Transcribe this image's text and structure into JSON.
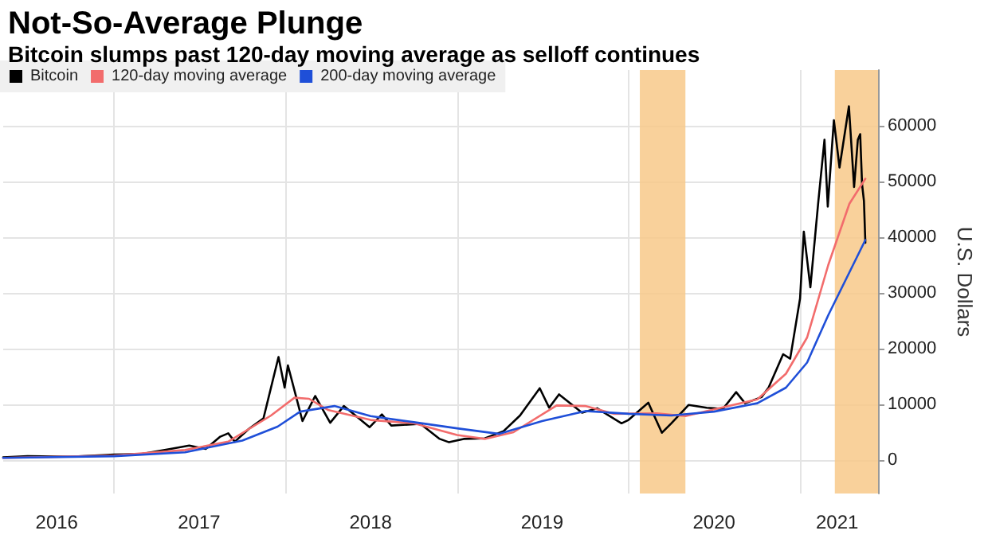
{
  "chart_data": {
    "type": "line",
    "title": "Not-So-Average Plunge",
    "subtitle": "Bitcoin slumps past 120-day moving average as selloff continues",
    "ylabel": "U.S. Dollars",
    "xlim": [
      "2016-05-10",
      "2021-06-15"
    ],
    "ylim": [
      -6000,
      70000
    ],
    "yticks": [
      0,
      10000,
      20000,
      30000,
      40000,
      50000,
      60000
    ],
    "xticks": [
      {
        "value": "2016-09-01",
        "label": "2016"
      },
      {
        "value": "2017-01-01",
        "label": null
      },
      {
        "value": "2017-07-01",
        "label": "2017"
      },
      {
        "value": "2018-01-01",
        "label": null
      },
      {
        "value": "2018-07-01",
        "label": "2018"
      },
      {
        "value": "2019-01-01",
        "label": null
      },
      {
        "value": "2019-07-01",
        "label": "2019"
      },
      {
        "value": "2020-01-01",
        "label": null
      },
      {
        "value": "2020-07-01",
        "label": "2020"
      },
      {
        "value": "2021-01-01",
        "label": null
      },
      {
        "value": "2021-03-20",
        "label": "2021"
      }
    ],
    "grid": true,
    "legend": "top left",
    "marker": "none",
    "line_style": "solid",
    "bands": [
      {
        "axis": "x",
        "from": "2020-01-25",
        "to": "2020-05-01",
        "color": "#f8c98a"
      },
      {
        "axis": "x",
        "from": "2021-03-15",
        "to": "2021-06-15",
        "color": "#f8c98a"
      }
    ],
    "series": [
      {
        "name": "Bitcoin",
        "color": "#000000",
        "x": [
          "2016-05-10",
          "2016-07-01",
          "2016-10-01",
          "2017-01-01",
          "2017-03-01",
          "2017-05-01",
          "2017-06-10",
          "2017-07-15",
          "2017-08-15",
          "2017-09-01",
          "2017-09-15",
          "2017-10-15",
          "2017-11-15",
          "2017-12-17",
          "2017-12-30",
          "2018-01-06",
          "2018-02-06",
          "2018-03-05",
          "2018-04-06",
          "2018-05-05",
          "2018-06-29",
          "2018-07-25",
          "2018-08-14",
          "2018-10-15",
          "2018-11-25",
          "2018-12-15",
          "2019-01-15",
          "2019-03-01",
          "2019-04-10",
          "2019-05-15",
          "2019-06-26",
          "2019-07-16",
          "2019-08-06",
          "2019-09-24",
          "2019-10-26",
          "2019-12-17",
          "2020-01-01",
          "2020-02-12",
          "2020-03-12",
          "2020-04-01",
          "2020-05-08",
          "2020-06-15",
          "2020-07-20",
          "2020-08-17",
          "2020-09-05",
          "2020-10-10",
          "2020-10-25",
          "2020-11-25",
          "2020-12-10",
          "2020-12-31",
          "2021-01-08",
          "2021-01-22",
          "2021-02-08",
          "2021-02-21",
          "2021-02-28",
          "2021-03-13",
          "2021-03-25",
          "2021-04-14",
          "2021-04-25",
          "2021-05-03",
          "2021-05-08",
          "2021-05-12",
          "2021-05-16",
          "2021-05-19"
        ],
        "values": [
          500,
          700,
          600,
          1000,
          1100,
          2000,
          2600,
          2000,
          4200,
          4800,
          3300,
          5600,
          7500,
          18500,
          13000,
          17000,
          7000,
          11500,
          6700,
          9700,
          5900,
          8200,
          6200,
          6500,
          3800,
          3200,
          3800,
          3900,
          5200,
          8000,
          12900,
          9400,
          11800,
          8500,
          9300,
          6600,
          7200,
          10300,
          4900,
          6600,
          9900,
          9400,
          9200,
          12200,
          10200,
          11300,
          13000,
          19000,
          18200,
          29000,
          41000,
          31000,
          46500,
          57500,
          45500,
          61000,
          52500,
          63500,
          49000,
          57500,
          58500,
          49500,
          46500,
          39000
        ]
      },
      {
        "name": "120-day moving average",
        "color": "#f26c6c",
        "x": [
          "2016-05-10",
          "2017-01-01",
          "2017-06-01",
          "2017-09-01",
          "2017-12-01",
          "2018-01-20",
          "2018-02-20",
          "2018-04-01",
          "2018-07-01",
          "2018-10-01",
          "2019-01-01",
          "2019-03-01",
          "2019-05-01",
          "2019-08-01",
          "2019-10-01",
          "2019-12-01",
          "2020-03-01",
          "2020-05-01",
          "2020-08-01",
          "2020-10-01",
          "2020-12-01",
          "2021-01-15",
          "2021-03-01",
          "2021-04-15",
          "2021-05-19"
        ],
        "values": [
          400,
          800,
          1800,
          3300,
          8000,
          11200,
          11000,
          9000,
          7200,
          6600,
          4500,
          3800,
          5000,
          9800,
          9700,
          8300,
          8400,
          7900,
          9700,
          10900,
          15500,
          22000,
          35000,
          46000,
          50500
        ]
      },
      {
        "name": "200-day moving average",
        "color": "#1f4fd8",
        "x": [
          "2016-05-10",
          "2017-01-01",
          "2017-06-01",
          "2017-10-01",
          "2017-12-15",
          "2018-02-01",
          "2018-04-15",
          "2018-07-01",
          "2018-10-01",
          "2019-01-01",
          "2019-04-01",
          "2019-07-01",
          "2019-10-01",
          "2020-01-01",
          "2020-04-01",
          "2020-07-01",
          "2020-10-01",
          "2020-12-01",
          "2021-01-15",
          "2021-03-01",
          "2021-05-19"
        ],
        "values": [
          400,
          700,
          1400,
          3500,
          6000,
          8700,
          9700,
          7900,
          6800,
          5700,
          4700,
          7000,
          8800,
          8300,
          8000,
          8700,
          10200,
          13000,
          17500,
          26000,
          39500
        ]
      }
    ]
  }
}
